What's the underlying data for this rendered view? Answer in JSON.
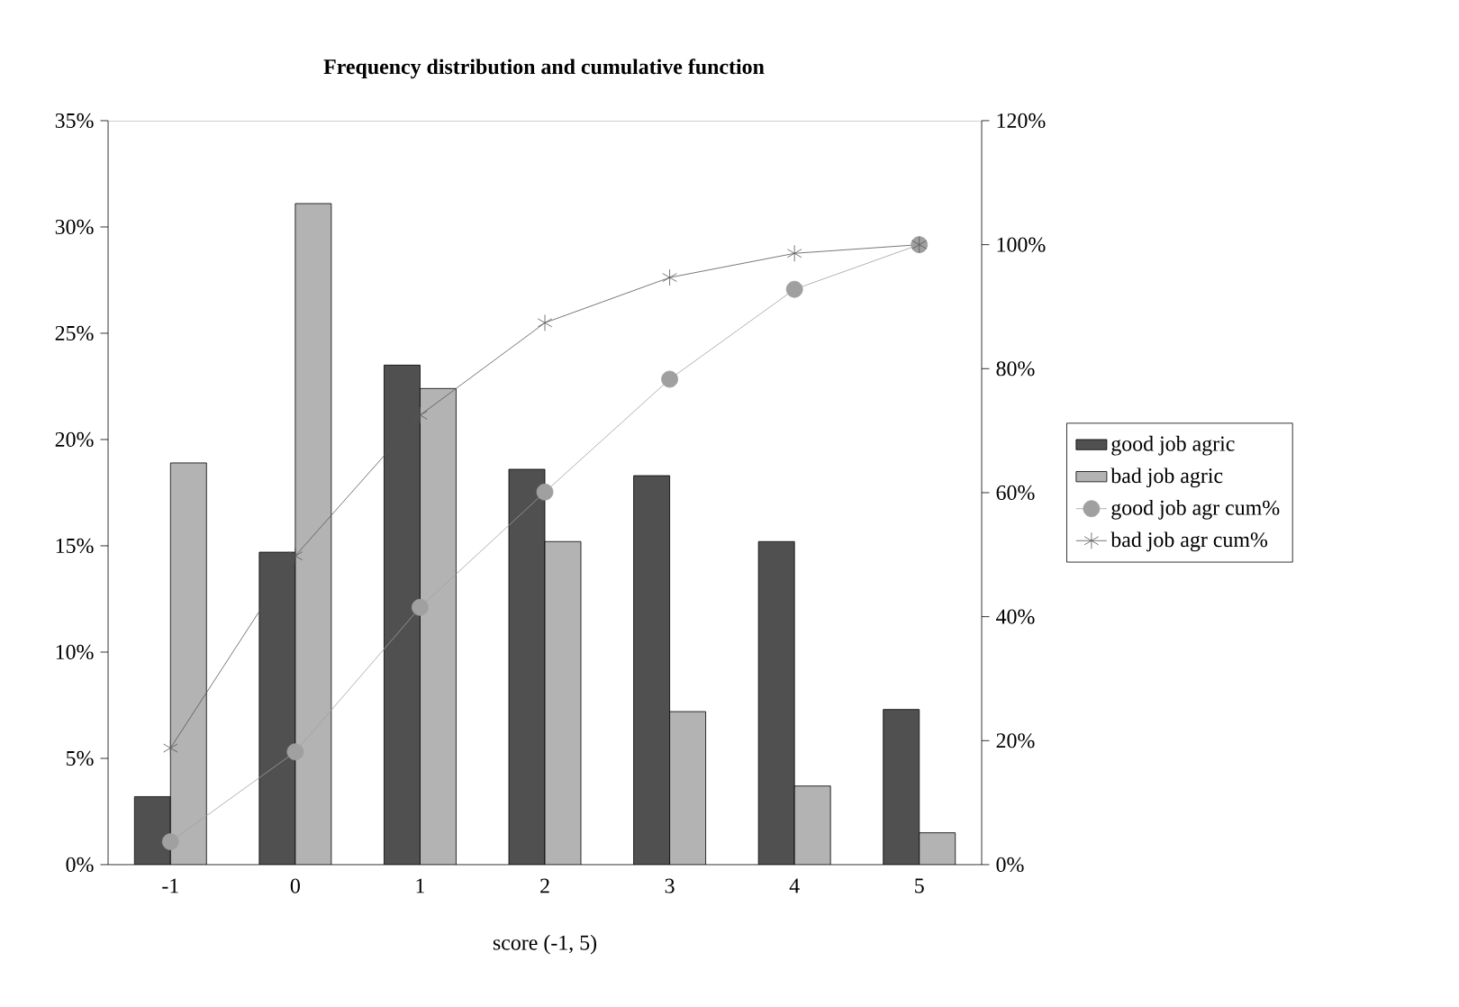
{
  "chart_data": {
    "type": "bar",
    "title": "Frequency distribution and cumulative function",
    "xlabel": "score (-1, 5)",
    "categories": [
      "-1",
      "0",
      "1",
      "2",
      "3",
      "4",
      "5"
    ],
    "series": [
      {
        "name": "good job agric",
        "color": "#505050",
        "values": [
          3.2,
          14.7,
          23.5,
          18.6,
          18.3,
          15.2,
          7.3
        ]
      },
      {
        "name": "bad job agric",
        "color": "#b3b3b3",
        "values": [
          18.9,
          31.1,
          22.4,
          15.2,
          7.2,
          3.7,
          1.5
        ]
      },
      {
        "name": "good job agr cum%",
        "type": "line",
        "axis": "y2",
        "marker": "circle",
        "color": "#a0a0a0",
        "values": [
          3.7,
          18.2,
          41.5,
          60.1,
          78.3,
          92.8,
          100
        ]
      },
      {
        "name": "bad job agr cum%",
        "type": "line",
        "axis": "y2",
        "marker": "cross",
        "color": "#555555",
        "values": [
          18.8,
          49.8,
          72.5,
          87.4,
          94.7,
          98.6,
          100
        ]
      }
    ],
    "ylim": [
      0,
      35
    ],
    "yticks": [
      {
        "value": 0,
        "label": "0%"
      },
      {
        "value": 5,
        "label": "5%"
      },
      {
        "value": 10,
        "label": "10%"
      },
      {
        "value": 15,
        "label": "15%"
      },
      {
        "value": 20,
        "label": "20%"
      },
      {
        "value": 25,
        "label": "25%"
      },
      {
        "value": 30,
        "label": "30%"
      },
      {
        "value": 35,
        "label": "35%"
      }
    ],
    "y2lim": [
      0,
      120
    ],
    "y2ticks": [
      {
        "value": 0,
        "label": "0%"
      },
      {
        "value": 20,
        "label": "20%"
      },
      {
        "value": 40,
        "label": "40%"
      },
      {
        "value": 60,
        "label": "60%"
      },
      {
        "value": 80,
        "label": "80%"
      },
      {
        "value": 100,
        "label": "100%"
      },
      {
        "value": 120,
        "label": "120%"
      }
    ],
    "legend": "right"
  }
}
